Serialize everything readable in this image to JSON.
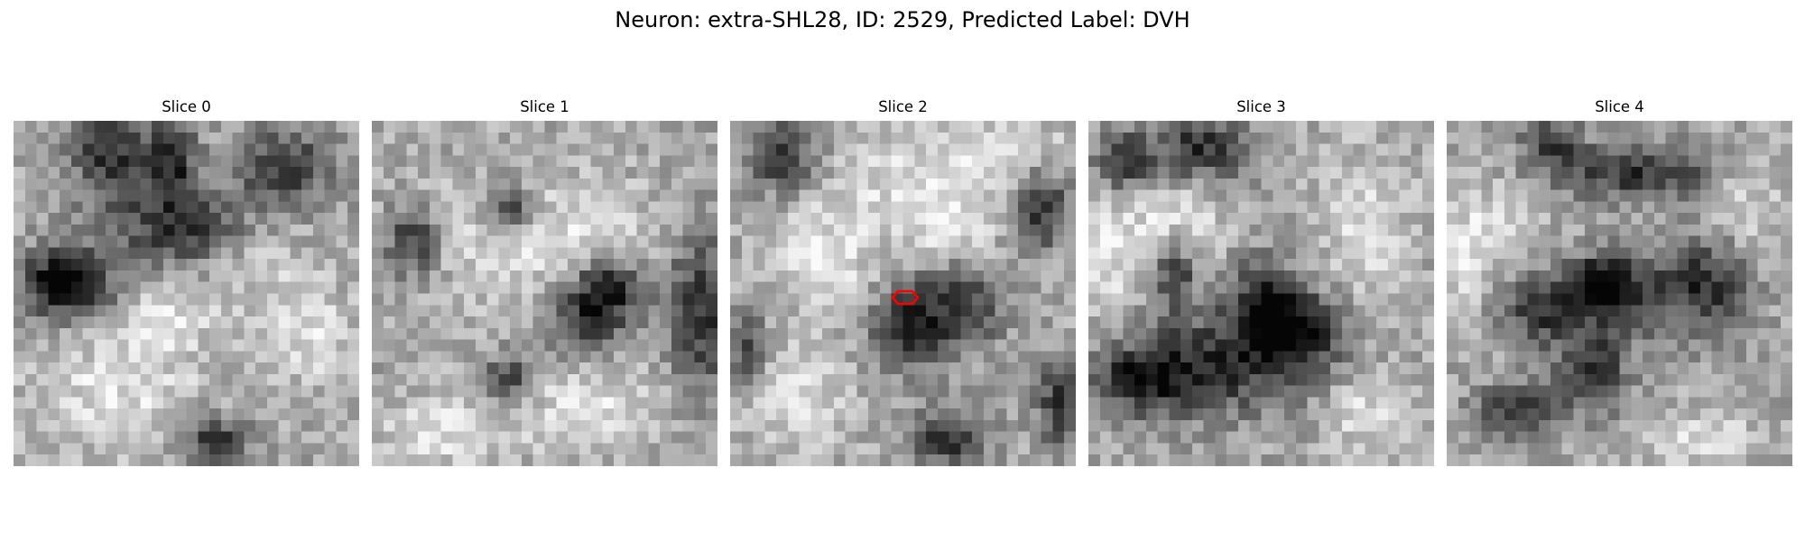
{
  "figure": {
    "title": "Neuron: extra-SHL28, ID: 2529, Predicted Label: DVH"
  },
  "colormap": "gray",
  "marker_color": "#ff0000",
  "marker_shape": "hexagon-outline",
  "marker_slice_index": 2,
  "panels": [
    {
      "title": "Slice 0",
      "dark_blobs": [
        [
          0.28,
          0.08,
          0.11,
          0.13
        ],
        [
          0.46,
          0.11,
          0.07,
          0.12
        ],
        [
          0.78,
          0.13,
          0.14,
          0.11
        ],
        [
          0.2,
          0.48,
          0.1,
          0.1
        ],
        [
          0.1,
          0.47,
          0.09,
          0.09
        ],
        [
          0.58,
          0.93,
          0.1,
          0.08
        ],
        [
          0.5,
          0.3,
          0.25,
          0.12
        ]
      ],
      "light_blobs": [
        [
          0.3,
          0.78,
          0.25,
          0.18
        ],
        [
          0.45,
          0.57,
          0.12,
          0.09
        ],
        [
          0.86,
          0.62,
          0.12,
          0.13
        ],
        [
          0.7,
          0.35,
          0.15,
          0.18
        ]
      ]
    },
    {
      "title": "Slice 1",
      "dark_blobs": [
        [
          0.62,
          0.58,
          0.12,
          0.12
        ],
        [
          0.69,
          0.48,
          0.1,
          0.09
        ],
        [
          0.4,
          0.25,
          0.07,
          0.07
        ],
        [
          0.12,
          0.35,
          0.08,
          0.1
        ],
        [
          0.95,
          0.55,
          0.1,
          0.25
        ],
        [
          0.4,
          0.75,
          0.08,
          0.08
        ]
      ],
      "light_blobs": [
        [
          0.5,
          0.35,
          0.35,
          0.18
        ],
        [
          0.2,
          0.9,
          0.18,
          0.1
        ],
        [
          0.6,
          0.8,
          0.25,
          0.15
        ]
      ]
    },
    {
      "title": "Slice 2",
      "dark_blobs": [
        [
          0.66,
          0.53,
          0.12,
          0.14
        ],
        [
          0.95,
          0.82,
          0.06,
          0.12
        ],
        [
          0.05,
          0.68,
          0.05,
          0.12
        ],
        [
          0.63,
          0.92,
          0.11,
          0.08
        ],
        [
          0.9,
          0.25,
          0.08,
          0.12
        ],
        [
          0.15,
          0.1,
          0.1,
          0.1
        ],
        [
          0.5,
          0.6,
          0.1,
          0.12
        ]
      ],
      "light_blobs": [
        [
          0.55,
          0.18,
          0.25,
          0.14
        ],
        [
          0.28,
          0.4,
          0.16,
          0.16
        ],
        [
          0.18,
          0.8,
          0.16,
          0.14
        ],
        [
          0.82,
          0.08,
          0.15,
          0.08
        ],
        [
          0.65,
          0.35,
          0.12,
          0.12
        ]
      ]
    },
    {
      "title": "Slice 3",
      "dark_blobs": [
        [
          0.33,
          0.08,
          0.15,
          0.1
        ],
        [
          0.1,
          0.12,
          0.08,
          0.08
        ],
        [
          0.25,
          0.45,
          0.05,
          0.1
        ],
        [
          0.51,
          0.52,
          0.1,
          0.12
        ],
        [
          0.62,
          0.6,
          0.12,
          0.1
        ],
        [
          0.4,
          0.7,
          0.25,
          0.15
        ],
        [
          0.15,
          0.75,
          0.15,
          0.1
        ]
      ],
      "light_blobs": [
        [
          0.06,
          0.4,
          0.08,
          0.18
        ],
        [
          0.25,
          0.28,
          0.15,
          0.12
        ],
        [
          0.8,
          0.3,
          0.12,
          0.2
        ],
        [
          0.8,
          0.85,
          0.12,
          0.1
        ]
      ]
    },
    {
      "title": "Slice 4",
      "dark_blobs": [
        [
          0.3,
          0.06,
          0.08,
          0.07
        ],
        [
          0.52,
          0.5,
          0.12,
          0.12
        ],
        [
          0.43,
          0.47,
          0.08,
          0.07
        ],
        [
          0.42,
          0.72,
          0.1,
          0.12
        ],
        [
          0.28,
          0.55,
          0.12,
          0.1
        ],
        [
          0.2,
          0.85,
          0.12,
          0.08
        ],
        [
          0.75,
          0.48,
          0.12,
          0.15
        ],
        [
          0.55,
          0.15,
          0.25,
          0.08
        ]
      ],
      "light_blobs": [
        [
          0.05,
          0.42,
          0.06,
          0.15
        ],
        [
          0.75,
          0.92,
          0.14,
          0.08
        ],
        [
          0.15,
          0.3,
          0.1,
          0.12
        ],
        [
          0.85,
          0.25,
          0.12,
          0.12
        ]
      ]
    }
  ]
}
